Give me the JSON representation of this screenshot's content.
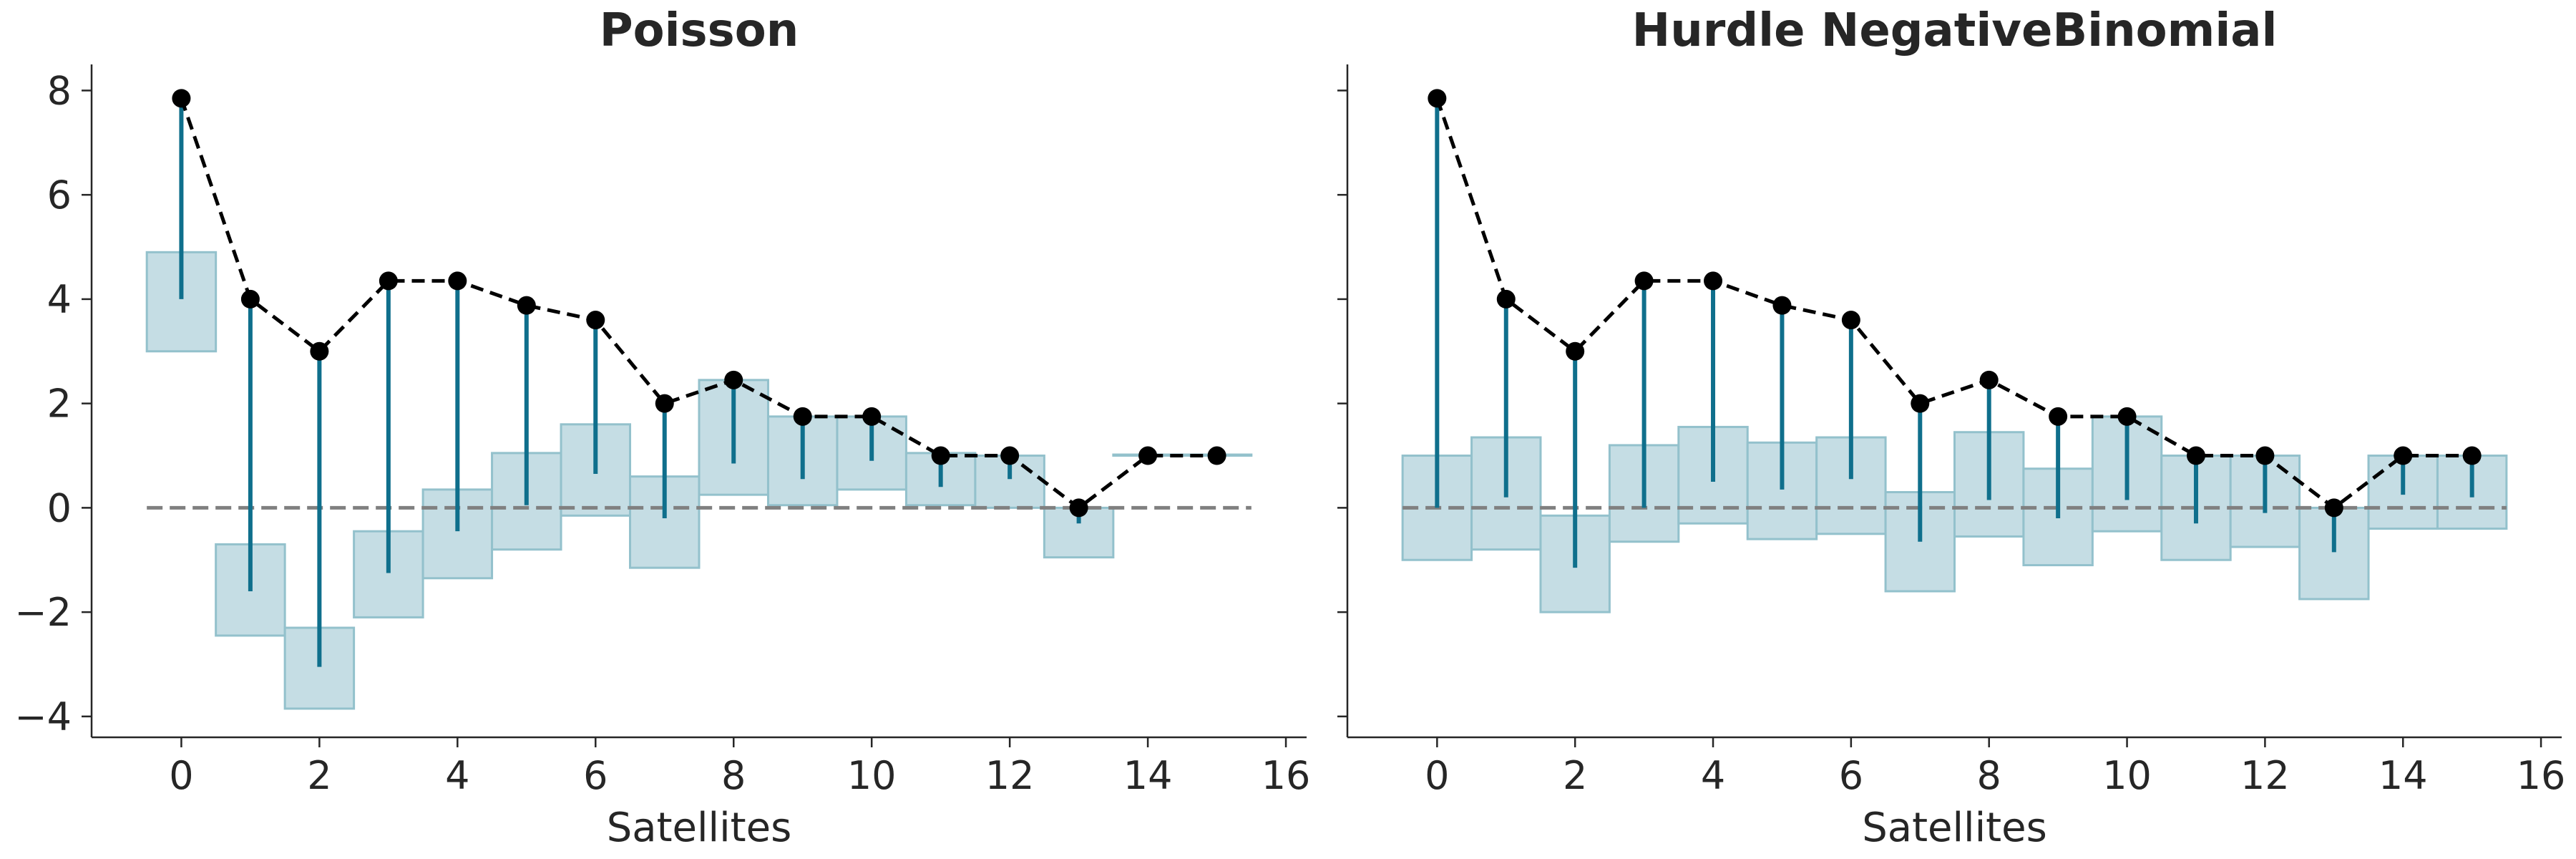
{
  "chart_data": [
    {
      "type": "bar",
      "title": "Poisson",
      "xlabel": "Satellites",
      "ylabel": "",
      "xlim": [
        -1.3,
        16.3
      ],
      "ylim": [
        -4.4,
        8.5
      ],
      "xticks": [
        0,
        2,
        4,
        6,
        8,
        10,
        12,
        14,
        16
      ],
      "xtick_labels": [
        "0",
        "2",
        "4",
        "6",
        "8",
        "10",
        "12",
        "14",
        "16"
      ],
      "yticks": [
        -4,
        -2,
        0,
        2,
        4,
        6,
        8
      ],
      "ytick_labels": [
        "−4",
        "−2",
        "0",
        "2",
        "4",
        "6",
        "8"
      ],
      "show_yticklabels": true,
      "reference_line": 0,
      "boxes": [
        {
          "x": 0,
          "low": 3.0,
          "high": 4.9
        },
        {
          "x": 1,
          "low": -2.45,
          "high": -0.7
        },
        {
          "x": 2,
          "low": -3.85,
          "high": -2.3
        },
        {
          "x": 3,
          "low": -2.1,
          "high": -0.45
        },
        {
          "x": 4,
          "low": -1.35,
          "high": 0.35
        },
        {
          "x": 5,
          "low": -0.8,
          "high": 1.05
        },
        {
          "x": 6,
          "low": -0.15,
          "high": 1.6
        },
        {
          "x": 7,
          "low": -1.15,
          "high": 0.6
        },
        {
          "x": 8,
          "low": 0.25,
          "high": 2.45
        },
        {
          "x": 9,
          "low": 0.05,
          "high": 1.75
        },
        {
          "x": 10,
          "low": 0.35,
          "high": 1.75
        },
        {
          "x": 11,
          "low": 0.05,
          "high": 1.05
        },
        {
          "x": 12,
          "low": 0.0,
          "high": 1.0
        },
        {
          "x": 13,
          "low": -0.95,
          "high": 0.0
        },
        {
          "x": 14,
          "low": 1.0,
          "high": 1.02
        },
        {
          "x": 15,
          "low": 1.0,
          "high": 1.02
        }
      ],
      "stems": [
        {
          "x": 0,
          "from": 4.0,
          "to": 7.85
        },
        {
          "x": 1,
          "from": -1.6,
          "to": 4.0
        },
        {
          "x": 2,
          "from": -3.05,
          "to": 3.0
        },
        {
          "x": 3,
          "from": -1.25,
          "to": 4.35
        },
        {
          "x": 4,
          "from": -0.45,
          "to": 4.35
        },
        {
          "x": 5,
          "from": 0.05,
          "to": 3.88
        },
        {
          "x": 6,
          "from": 0.65,
          "to": 3.6
        },
        {
          "x": 7,
          "from": -0.2,
          "to": 2.0
        },
        {
          "x": 8,
          "from": 0.85,
          "to": 2.45
        },
        {
          "x": 9,
          "from": 0.55,
          "to": 1.75
        },
        {
          "x": 10,
          "from": 0.9,
          "to": 1.75
        },
        {
          "x": 11,
          "from": 0.4,
          "to": 1.0
        },
        {
          "x": 12,
          "from": 0.55,
          "to": 1.0
        },
        {
          "x": 13,
          "from": -0.3,
          "to": 0.0
        }
      ],
      "points": [
        {
          "x": 0,
          "y": 7.85
        },
        {
          "x": 1,
          "y": 4.0
        },
        {
          "x": 2,
          "y": 3.0
        },
        {
          "x": 3,
          "y": 4.35
        },
        {
          "x": 4,
          "y": 4.35
        },
        {
          "x": 5,
          "y": 3.88
        },
        {
          "x": 6,
          "y": 3.6
        },
        {
          "x": 7,
          "y": 2.0
        },
        {
          "x": 8,
          "y": 2.45
        },
        {
          "x": 9,
          "y": 1.75
        },
        {
          "x": 10,
          "y": 1.75
        },
        {
          "x": 11,
          "y": 1.0
        },
        {
          "x": 12,
          "y": 1.0
        },
        {
          "x": 13,
          "y": 0.0
        },
        {
          "x": 14,
          "y": 1.0
        },
        {
          "x": 15,
          "y": 1.0
        }
      ]
    },
    {
      "type": "bar",
      "title": "Hurdle NegativeBinomial",
      "xlabel": "Satellites",
      "ylabel": "",
      "xlim": [
        -1.3,
        16.3
      ],
      "ylim": [
        -4.4,
        8.5
      ],
      "xticks": [
        0,
        2,
        4,
        6,
        8,
        10,
        12,
        14,
        16
      ],
      "xtick_labels": [
        "0",
        "2",
        "4",
        "6",
        "8",
        "10",
        "12",
        "14",
        "16"
      ],
      "yticks": [
        -4,
        -2,
        0,
        2,
        4,
        6,
        8
      ],
      "ytick_labels": [
        "−4",
        "−2",
        "0",
        "2",
        "4",
        "6",
        "8"
      ],
      "show_yticklabels": false,
      "reference_line": 0,
      "boxes": [
        {
          "x": 0,
          "low": -1.0,
          "high": 1.0
        },
        {
          "x": 1,
          "low": -0.8,
          "high": 1.35
        },
        {
          "x": 2,
          "low": -2.0,
          "high": -0.15
        },
        {
          "x": 3,
          "low": -0.65,
          "high": 1.2
        },
        {
          "x": 4,
          "low": -0.3,
          "high": 1.55
        },
        {
          "x": 5,
          "low": -0.6,
          "high": 1.25
        },
        {
          "x": 6,
          "low": -0.5,
          "high": 1.35
        },
        {
          "x": 7,
          "low": -1.6,
          "high": 0.3
        },
        {
          "x": 8,
          "low": -0.55,
          "high": 1.45
        },
        {
          "x": 9,
          "low": -1.1,
          "high": 0.75
        },
        {
          "x": 10,
          "low": -0.45,
          "high": 1.75
        },
        {
          "x": 11,
          "low": -1.0,
          "high": 1.0
        },
        {
          "x": 12,
          "low": -0.75,
          "high": 1.0
        },
        {
          "x": 13,
          "low": -1.75,
          "high": 0.0
        },
        {
          "x": 14,
          "low": -0.4,
          "high": 1.0
        },
        {
          "x": 15,
          "low": -0.4,
          "high": 1.0
        }
      ],
      "stems": [
        {
          "x": 0,
          "from": 0.0,
          "to": 7.85
        },
        {
          "x": 1,
          "from": 0.2,
          "to": 4.0
        },
        {
          "x": 2,
          "from": -1.15,
          "to": 3.0
        },
        {
          "x": 3,
          "from": 0.0,
          "to": 4.35
        },
        {
          "x": 4,
          "from": 0.5,
          "to": 4.35
        },
        {
          "x": 5,
          "from": 0.35,
          "to": 3.88
        },
        {
          "x": 6,
          "from": 0.55,
          "to": 3.6
        },
        {
          "x": 7,
          "from": -0.65,
          "to": 2.0
        },
        {
          "x": 8,
          "from": 0.15,
          "to": 2.45
        },
        {
          "x": 9,
          "from": -0.2,
          "to": 1.75
        },
        {
          "x": 10,
          "from": 0.15,
          "to": 1.75
        },
        {
          "x": 11,
          "from": -0.3,
          "to": 1.0
        },
        {
          "x": 12,
          "from": -0.1,
          "to": 1.0
        },
        {
          "x": 13,
          "from": -0.85,
          "to": 0.0
        },
        {
          "x": 14,
          "from": 0.25,
          "to": 1.0
        },
        {
          "x": 15,
          "from": 0.2,
          "to": 1.0
        }
      ],
      "points": [
        {
          "x": 0,
          "y": 7.85
        },
        {
          "x": 1,
          "y": 4.0
        },
        {
          "x": 2,
          "y": 3.0
        },
        {
          "x": 3,
          "y": 4.35
        },
        {
          "x": 4,
          "y": 4.35
        },
        {
          "x": 5,
          "y": 3.88
        },
        {
          "x": 6,
          "y": 3.6
        },
        {
          "x": 7,
          "y": 2.0
        },
        {
          "x": 8,
          "y": 2.45
        },
        {
          "x": 9,
          "y": 1.75
        },
        {
          "x": 10,
          "y": 1.75
        },
        {
          "x": 11,
          "y": 1.0
        },
        {
          "x": 12,
          "y": 1.0
        },
        {
          "x": 13,
          "y": 0.0
        },
        {
          "x": 14,
          "y": 1.0
        },
        {
          "x": 15,
          "y": 1.0
        }
      ]
    }
  ],
  "colors": {
    "box_fill": "#c5dde4",
    "box_edge": "#93c1cc",
    "stem": "#0f6f8c",
    "points": "#000000",
    "connect_line": "#000000",
    "reference_line": "#808080",
    "axis": "#262626",
    "text": "#262626"
  }
}
